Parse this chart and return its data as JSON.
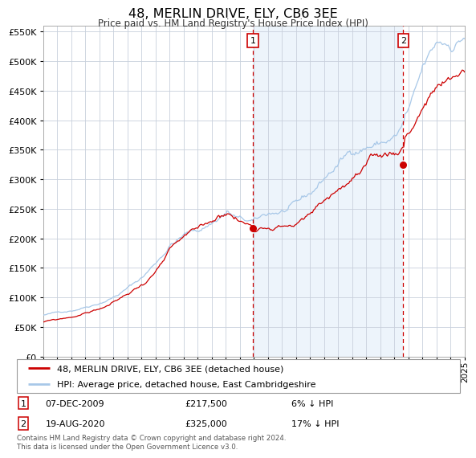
{
  "title": "48, MERLIN DRIVE, ELY, CB6 3EE",
  "subtitle": "Price paid vs. HM Land Registry's House Price Index (HPI)",
  "legend_line1": "48, MERLIN DRIVE, ELY, CB6 3EE (detached house)",
  "legend_line2": "HPI: Average price, detached house, East Cambridgeshire",
  "annotation1_label": "1",
  "annotation1_date": "07-DEC-2009",
  "annotation1_price": "£217,500",
  "annotation1_pct": "6% ↓ HPI",
  "annotation2_label": "2",
  "annotation2_date": "19-AUG-2020",
  "annotation2_price": "£325,000",
  "annotation2_pct": "17% ↓ HPI",
  "sale1_year": 2009.92,
  "sale1_value": 217500,
  "sale2_year": 2020.63,
  "sale2_value": 325000,
  "vline1_year": 2009.92,
  "vline2_year": 2020.63,
  "hpi_color": "#a8c8e8",
  "price_color": "#cc0000",
  "vline_color": "#cc0000",
  "shade_color": "#cce0f5",
  "bg_color": "#ffffff",
  "grid_color": "#c8d0dc",
  "ylim_min": 0,
  "ylim_max": 560000,
  "ytick_step": 50000,
  "start_year": 1995,
  "end_year": 2025,
  "footer": "Contains HM Land Registry data © Crown copyright and database right 2024.\nThis data is licensed under the Open Government Licence v3.0."
}
